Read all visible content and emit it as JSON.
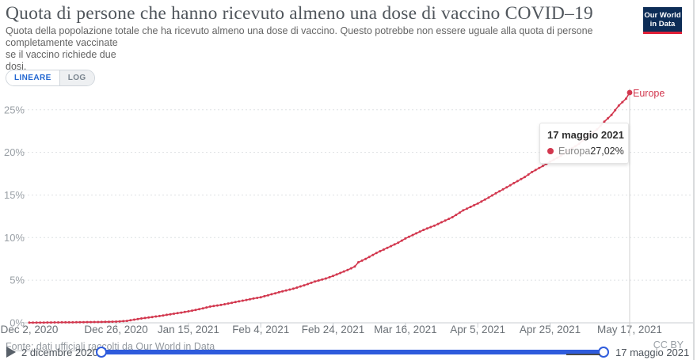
{
  "header": {
    "title": "Quota di persone che hanno ricevuto almeno una dose di vaccino COVID–19",
    "subtitle_lines": [
      "Quota della popolazione totale che ha ricevuto almeno una dose di vaccino. Questo potrebbe non essere uguale alla quota di persone completamente vaccinate",
      "se il vaccino richiede due",
      "dosi."
    ],
    "logo_line1": "Our World",
    "logo_line2": "in Data"
  },
  "controls": {
    "linear_label": "LINEARE",
    "log_label": "LOG"
  },
  "chart_data": {
    "type": "line",
    "title": "Quota di persone che hanno ricevuto almeno una dose di vaccino COVID-19",
    "xlabel": "",
    "ylabel": "",
    "ylim": [
      0,
      27.5
    ],
    "x_range_days": 166,
    "grid": "horizontal-dashed",
    "y_ticks": [
      {
        "label": "0%",
        "value": 0
      },
      {
        "label": "5%",
        "value": 5
      },
      {
        "label": "10%",
        "value": 10
      },
      {
        "label": "15%",
        "value": 15
      },
      {
        "label": "20%",
        "value": 20
      },
      {
        "label": "25%",
        "value": 25
      }
    ],
    "x_ticks": [
      {
        "label": "Dec 2, 2020",
        "day": 0
      },
      {
        "label": "Dec 26, 2020",
        "day": 24
      },
      {
        "label": "Jan 15, 2021",
        "day": 44
      },
      {
        "label": "Feb 4, 2021",
        "day": 64
      },
      {
        "label": "Feb 24, 2021",
        "day": 84
      },
      {
        "label": "Mar 16, 2021",
        "day": 104
      },
      {
        "label": "Apr 5, 2021",
        "day": 124
      },
      {
        "label": "Apr 25, 2021",
        "day": 144
      },
      {
        "label": "May 17, 2021",
        "day": 166
      }
    ],
    "series": [
      {
        "name": "Europe",
        "color": "#d2374e",
        "marker": "dot-daily",
        "last_value_display": "27,02%",
        "points": [
          [
            0,
            0.02
          ],
          [
            4,
            0.03
          ],
          [
            8,
            0.05
          ],
          [
            12,
            0.06
          ],
          [
            16,
            0.08
          ],
          [
            20,
            0.1
          ],
          [
            24,
            0.14
          ],
          [
            27,
            0.22
          ],
          [
            30,
            0.45
          ],
          [
            33,
            0.62
          ],
          [
            36,
            0.8
          ],
          [
            39,
            1.0
          ],
          [
            42,
            1.2
          ],
          [
            44,
            1.35
          ],
          [
            47,
            1.6
          ],
          [
            50,
            1.9
          ],
          [
            53,
            2.1
          ],
          [
            56,
            2.35
          ],
          [
            59,
            2.6
          ],
          [
            62,
            2.85
          ],
          [
            64,
            3.0
          ],
          [
            67,
            3.35
          ],
          [
            70,
            3.7
          ],
          [
            73,
            4.0
          ],
          [
            76,
            4.4
          ],
          [
            79,
            4.85
          ],
          [
            82,
            5.2
          ],
          [
            84,
            5.5
          ],
          [
            86,
            5.85
          ],
          [
            88,
            6.2
          ],
          [
            90,
            6.6
          ],
          [
            91,
            7.1
          ],
          [
            93,
            7.5
          ],
          [
            96,
            8.2
          ],
          [
            99,
            8.8
          ],
          [
            102,
            9.4
          ],
          [
            104,
            9.9
          ],
          [
            107,
            10.5
          ],
          [
            109,
            10.9
          ],
          [
            112,
            11.4
          ],
          [
            114,
            11.8
          ],
          [
            117,
            12.4
          ],
          [
            120,
            13.2
          ],
          [
            124,
            14.0
          ],
          [
            127,
            14.7
          ],
          [
            129,
            15.2
          ],
          [
            132,
            15.9
          ],
          [
            134,
            16.4
          ],
          [
            137,
            17.1
          ],
          [
            139,
            17.7
          ],
          [
            142,
            18.4
          ],
          [
            144,
            18.9
          ],
          [
            147,
            19.6
          ],
          [
            149,
            20.2
          ],
          [
            152,
            21.0
          ],
          [
            154,
            21.8
          ],
          [
            157,
            22.7
          ],
          [
            159,
            23.6
          ],
          [
            161,
            24.4
          ],
          [
            163,
            25.5
          ],
          [
            165,
            26.3
          ],
          [
            166,
            27.02
          ]
        ]
      }
    ],
    "end_label": "Europe",
    "hover_line_day": 166,
    "legend_position": "end-of-line"
  },
  "tooltip": {
    "date": "17 maggio 2021",
    "series_name": "Europa",
    "value": "27,02%",
    "color": "#d2374e"
  },
  "footer": {
    "source": "Fonte: dati ufficiali raccolti da Our World in Data",
    "license": "CC BY"
  },
  "timeline": {
    "start_label": "2 dicembre 2020",
    "end_label": "17 maggio 2021",
    "accent": "#2e5bdc"
  }
}
